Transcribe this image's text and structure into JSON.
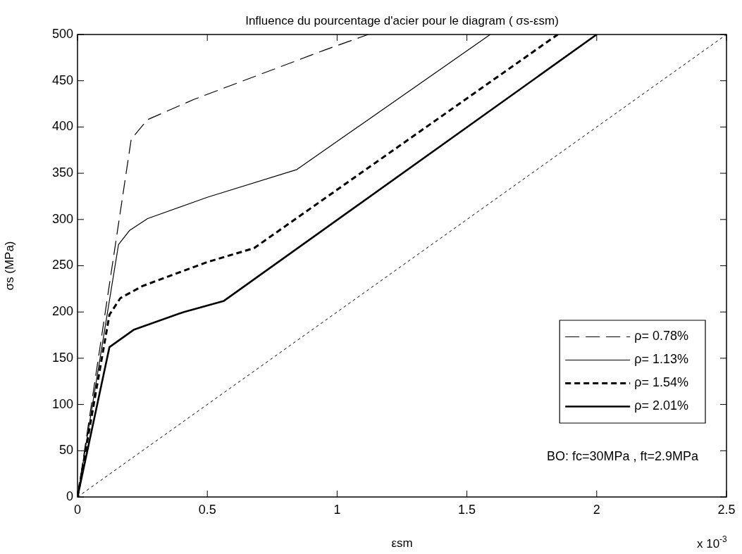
{
  "chart_data": {
    "type": "line",
    "title": "Influence du pourcentage d'acier pour le diagram ( σs-εsm)",
    "xlabel": "εsm",
    "ylabel": "σs (MPa)",
    "xlim": [
      0,
      2.5
    ],
    "xticks": [
      0,
      0.5,
      1,
      1.5,
      2,
      2.5
    ],
    "ylim": [
      0,
      500
    ],
    "yticks": [
      0,
      50,
      100,
      150,
      200,
      250,
      300,
      350,
      400,
      450,
      500
    ],
    "grid": false,
    "legend": "bottom right",
    "marker": "none",
    "series": [
      {
        "name": "ρ= 0.78%",
        "color": "#000000",
        "line_style": "dashed",
        "x": [
          0,
          0.207,
          0.27,
          0.45,
          0.95,
          1.12
        ],
        "values": [
          0,
          387,
          408,
          430,
          483,
          500
        ]
      },
      {
        "name": "ρ= 1.13%",
        "color": "#000000",
        "line_style": "solid",
        "x": [
          0,
          0.158,
          0.2,
          0.27,
          0.5,
          0.845,
          1.59
        ],
        "values": [
          0,
          273,
          288,
          301,
          324,
          354,
          500
        ]
      },
      {
        "name": "ρ= 1.54%",
        "color": "#000000",
        "line_style": "dashed",
        "x": [
          0,
          0.123,
          0.165,
          0.25,
          0.5,
          0.68,
          1.85
        ],
        "values": [
          0,
          197,
          215,
          228,
          254,
          269,
          500
        ]
      },
      {
        "name": "ρ= 2.01%",
        "color": "#000000",
        "line_style": "solid",
        "x": [
          0,
          0.123,
          0.218,
          0.41,
          0.564,
          2.0
        ],
        "values": [
          0,
          162,
          181,
          200,
          212,
          500
        ]
      },
      {
        "color": "#000000",
        "line_style": "dotted",
        "x": [
          0,
          2.5
        ],
        "values": [
          0,
          500
        ]
      }
    ],
    "annotations": [
      "BO: fc=30MPa , ft=2.9MPa",
      "x 10$^{-3}$"
    ]
  }
}
